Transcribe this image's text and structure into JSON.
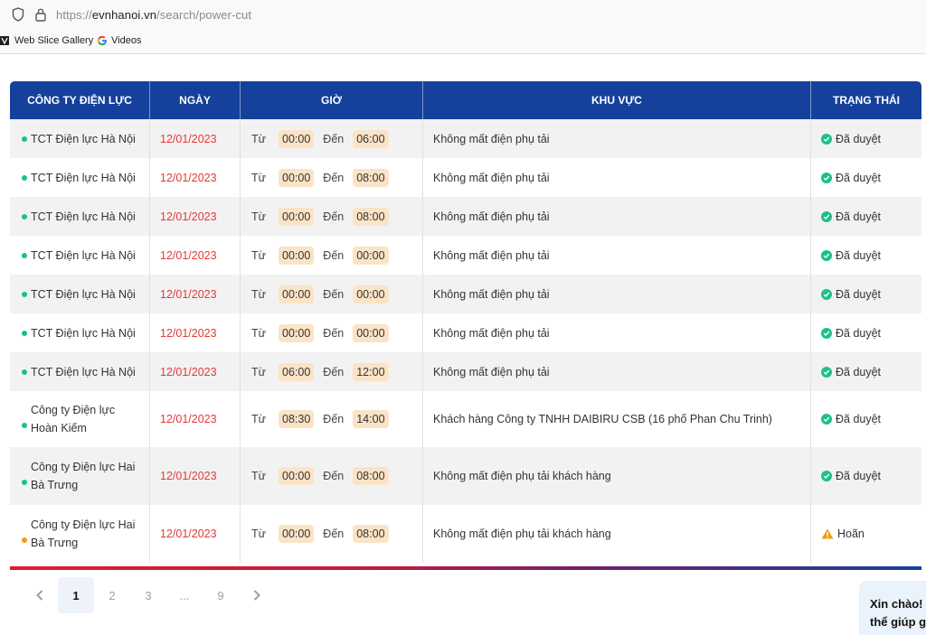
{
  "browser": {
    "url_scheme": "https://",
    "url_host": "evnhanoi.vn",
    "url_path": "/search/power-cut",
    "bookmarks": [
      {
        "label": "Web Slice Gallery",
        "icon": "web-slice-icon"
      },
      {
        "label": "Videos",
        "icon": "google-icon"
      }
    ]
  },
  "table": {
    "headers": [
      "CÔNG TY ĐIỆN LỰC",
      "NGÀY",
      "GIỜ",
      "KHU VỰC",
      "TRẠNG THÁI"
    ],
    "from_label": "Từ",
    "to_label": "Đến",
    "rows": [
      {
        "company": "TCT Điện lực Hà Nội",
        "date": "12/01/2023",
        "from": "00:00",
        "to": "06:00",
        "area": "Không mất điện phụ tải",
        "status": "Đã duyệt",
        "status_type": "approved"
      },
      {
        "company": "TCT Điện lực Hà Nội",
        "date": "12/01/2023",
        "from": "00:00",
        "to": "08:00",
        "area": "Không mất điện phụ tải",
        "status": "Đã duyệt",
        "status_type": "approved"
      },
      {
        "company": "TCT Điện lực Hà Nội",
        "date": "12/01/2023",
        "from": "00:00",
        "to": "08:00",
        "area": "Không mất điện phụ tải",
        "status": "Đã duyệt",
        "status_type": "approved"
      },
      {
        "company": "TCT Điện lực Hà Nội",
        "date": "12/01/2023",
        "from": "00:00",
        "to": "00:00",
        "area": "Không mất điện phụ tải",
        "status": "Đã duyệt",
        "status_type": "approved"
      },
      {
        "company": "TCT Điện lực Hà Nội",
        "date": "12/01/2023",
        "from": "00:00",
        "to": "00:00",
        "area": "Không mất điện phụ tải",
        "status": "Đã duyệt",
        "status_type": "approved"
      },
      {
        "company": "TCT Điện lực Hà Nội",
        "date": "12/01/2023",
        "from": "00:00",
        "to": "00:00",
        "area": "Không mất điện phụ tải",
        "status": "Đã duyệt",
        "status_type": "approved"
      },
      {
        "company": "TCT Điện lực Hà Nội",
        "date": "12/01/2023",
        "from": "06:00",
        "to": "12:00",
        "area": "Không mất điện phụ tải",
        "status": "Đã duyệt",
        "status_type": "approved"
      },
      {
        "company": "Công ty Điện lực Hoàn Kiếm",
        "date": "12/01/2023",
        "from": "08:30",
        "to": "14:00",
        "area": "Khách hàng Công ty TNHH DAIBIRU CSB (16 phố Phan Chu Trinh)",
        "status": "Đã duyệt",
        "status_type": "approved"
      },
      {
        "company": "Công ty Điện lực Hai Bà Trưng",
        "date": "12/01/2023",
        "from": "00:00",
        "to": "08:00",
        "area": "Không mất điện phụ tải khách hàng",
        "status": "Đã duyệt",
        "status_type": "approved"
      },
      {
        "company": "Công ty Điện lực Hai Bà Trưng",
        "date": "12/01/2023",
        "from": "00:00",
        "to": "08:00",
        "area": "Không mất điện phụ tải khách hàng",
        "status": "Hoãn",
        "status_type": "postponed"
      }
    ]
  },
  "colors": {
    "header_bg": "#15409b",
    "date_text": "#e53935",
    "time_pill": "#fbe3c6",
    "approved": "#1bc08b",
    "postponed": "#f59a14"
  },
  "pagination": {
    "prev_icon": "chevron-left-icon",
    "next_icon": "chevron-right-icon",
    "pages": [
      "1",
      "2",
      "3",
      "...",
      "9"
    ],
    "current": "1"
  },
  "chat": {
    "line1": "Xin chào!",
    "line2": "thể giúp g"
  }
}
